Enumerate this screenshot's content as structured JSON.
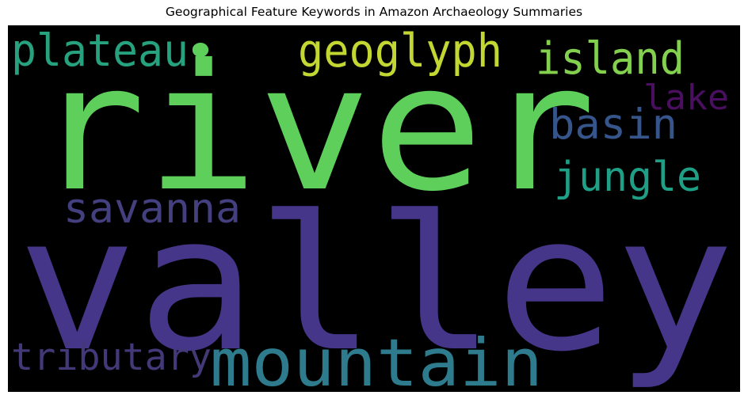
{
  "chart_data": {
    "type": "wordcloud",
    "title": "Geographical Feature Keywords in Amazon Archaeology Summaries",
    "background": "#000000",
    "words": [
      {
        "text": "river",
        "color": "#5fcf5c"
      },
      {
        "text": "valley",
        "color": "#46368a"
      },
      {
        "text": "mountain",
        "color": "#2d7b8c"
      },
      {
        "text": "geoglyph",
        "color": "#c2d732"
      },
      {
        "text": "plateau",
        "color": "#26a27f"
      },
      {
        "text": "island",
        "color": "#82d04e"
      },
      {
        "text": "basin",
        "color": "#36558a"
      },
      {
        "text": "jungle",
        "color": "#1e9f86"
      },
      {
        "text": "savanna",
        "color": "#44407f"
      },
      {
        "text": "lake",
        "color": "#4a0f60"
      },
      {
        "text": "tributary",
        "color": "#443978"
      },
      {
        "text": "•",
        "color": "#5fcf5c"
      }
    ]
  }
}
